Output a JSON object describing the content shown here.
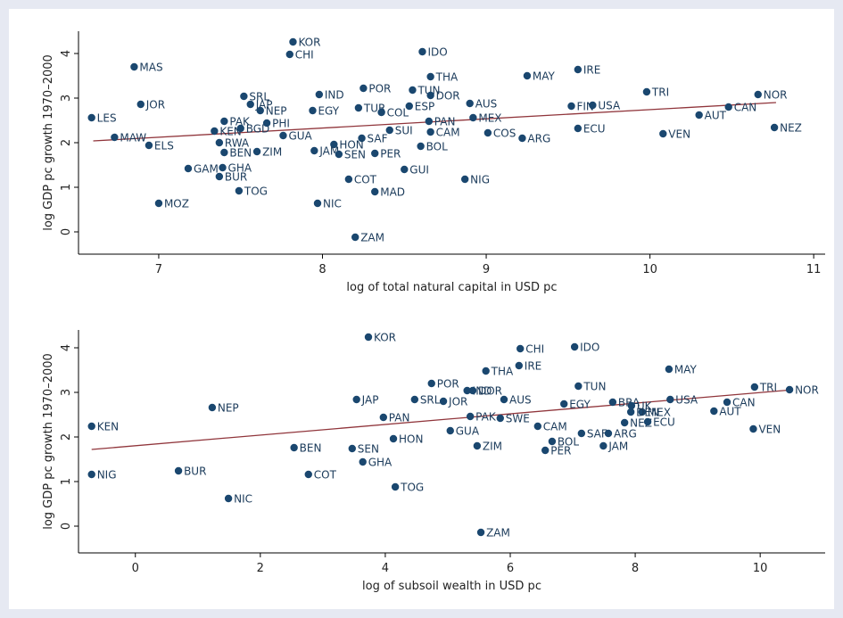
{
  "chart_data": [
    {
      "type": "scatter",
      "x_label": "log of total natural capital in USD pc",
      "y_label": "log GDP pc growth 1970–2000",
      "color": "#1a476f",
      "fit_color": "#90353b",
      "xlim": [
        6.51,
        11.07
      ],
      "ylim": [
        -0.5,
        4.5
      ],
      "xticks": [
        7,
        8,
        9,
        10,
        11
      ],
      "yticks": [
        0,
        1,
        2,
        3,
        4
      ],
      "labels": [
        "KOR",
        "CHI",
        "IDO",
        "MAS",
        "THA",
        "MAY",
        "IRE",
        "LES",
        "JOR",
        "MAW",
        "ELS",
        "SRL",
        "IND",
        "POR",
        "TUN",
        "DOR",
        "TRI",
        "NOR",
        "JAP",
        "NEP",
        "PAK",
        "KEN",
        "BGD",
        "PHI",
        "GUA",
        "EGY",
        "TUR",
        "COL",
        "ESP",
        "PAN",
        "MEX",
        "AUS",
        "FIN",
        "USA",
        "ECU",
        "CAN",
        "AUT",
        "NEZ",
        "VEN",
        "COS",
        "ARG",
        "CAM",
        "BOL",
        "SUI",
        "SAF",
        "HON",
        "JAM",
        "SEN",
        "PER",
        "RWA",
        "BEN",
        "ZIM",
        "GAM",
        "GHA",
        "BUR",
        "TOG",
        "MOZ",
        "NIC",
        "COT",
        "MAD",
        "GUI",
        "NIG",
        "ZAM"
      ],
      "x": [
        7.82,
        7.8,
        8.61,
        6.85,
        8.66,
        9.25,
        9.56,
        6.59,
        6.89,
        6.73,
        6.94,
        7.52,
        7.98,
        8.25,
        8.55,
        8.66,
        9.98,
        10.66,
        7.56,
        7.62,
        7.4,
        7.34,
        7.5,
        7.66,
        7.76,
        7.94,
        8.22,
        8.36,
        8.53,
        8.65,
        8.92,
        8.9,
        9.52,
        9.65,
        9.56,
        10.48,
        10.3,
        10.76,
        10.08,
        9.01,
        9.22,
        8.66,
        8.6,
        8.41,
        8.24,
        8.07,
        7.95,
        8.1,
        8.32,
        7.37,
        7.4,
        7.6,
        7.18,
        7.39,
        7.37,
        7.49,
        7.0,
        7.97,
        8.16,
        8.32,
        8.5,
        8.87,
        8.2
      ],
      "y": [
        4.26,
        3.98,
        4.04,
        3.7,
        3.48,
        3.5,
        3.64,
        2.56,
        2.86,
        2.12,
        1.94,
        3.04,
        3.08,
        3.22,
        3.18,
        3.06,
        3.14,
        3.08,
        2.86,
        2.72,
        2.48,
        2.26,
        2.32,
        2.44,
        2.16,
        2.72,
        2.78,
        2.68,
        2.82,
        2.48,
        2.56,
        2.88,
        2.82,
        2.84,
        2.32,
        2.8,
        2.62,
        2.34,
        2.2,
        2.22,
        2.1,
        2.24,
        1.92,
        2.28,
        2.1,
        1.96,
        1.82,
        1.74,
        1.76,
        2.0,
        1.78,
        1.8,
        1.42,
        1.44,
        1.24,
        0.92,
        0.64,
        0.64,
        1.18,
        0.9,
        1.4,
        1.18,
        -0.12
      ],
      "fit": {
        "x": [
          6.6,
          10.77
        ],
        "y": [
          2.04,
          2.9
        ]
      }
    },
    {
      "type": "scatter",
      "x_label": "log of subsoil wealth in USD pc",
      "y_label": "log GDP pc growth 1970–2000",
      "color": "#1a476f",
      "fit_color": "#90353b",
      "xlim": [
        -0.91,
        11.04
      ],
      "ylim": [
        -0.6,
        4.4
      ],
      "xticks": [
        0,
        2,
        4,
        6,
        8,
        10
      ],
      "yticks": [
        0,
        1,
        2,
        3,
        4
      ],
      "labels": [
        "KOR",
        "CHI",
        "IDO",
        "THA",
        "IRE",
        "MAY",
        "TRI",
        "NOR",
        "POR",
        "TUN",
        "JAP",
        "NEP",
        "KEN",
        "NIG",
        "BUR",
        "NIC",
        "BEN",
        "SEN",
        "COT",
        "GHA",
        "TOG",
        "HON",
        "GUA",
        "ZIM",
        "ZAM",
        "PAK",
        "SWE",
        "CAM",
        "BOL",
        "PER",
        "SAF",
        "JAM",
        "ARG",
        "NEZ",
        "ECU",
        "MEX",
        "USA",
        "CAN",
        "AUT",
        "VEN",
        "AUS",
        "BRA",
        "EGY",
        "IND",
        "DOR",
        "JOR",
        "SRL",
        "PAN",
        "UK",
        "DEN"
      ],
      "x": [
        3.73,
        6.16,
        7.03,
        5.61,
        6.14,
        8.54,
        9.91,
        10.47,
        4.74,
        7.09,
        3.54,
        1.23,
        -0.7,
        -0.7,
        0.69,
        1.49,
        2.54,
        3.47,
        2.77,
        3.64,
        4.16,
        4.13,
        5.04,
        5.47,
        5.53,
        5.36,
        5.84,
        6.44,
        6.67,
        6.56,
        7.14,
        7.49,
        7.57,
        7.83,
        8.2,
        8.11,
        8.56,
        9.47,
        9.26,
        9.89,
        5.9,
        7.64,
        6.86,
        5.31,
        5.4,
        4.93,
        4.47,
        3.97,
        7.94,
        7.93
      ],
      "y": [
        4.24,
        3.98,
        4.02,
        3.48,
        3.6,
        3.52,
        3.12,
        3.06,
        3.2,
        3.14,
        2.84,
        2.66,
        2.24,
        1.16,
        1.24,
        0.62,
        1.76,
        1.74,
        1.16,
        1.44,
        0.88,
        1.96,
        2.14,
        1.8,
        -0.14,
        2.46,
        2.42,
        2.24,
        1.9,
        1.7,
        2.08,
        1.8,
        2.08,
        2.32,
        2.34,
        2.56,
        2.84,
        2.78,
        2.58,
        2.18,
        2.84,
        2.78,
        2.74,
        3.04,
        3.04,
        2.8,
        2.84,
        2.44,
        2.7,
        2.56
      ],
      "fit": {
        "x": [
          -0.7,
          10.45
        ],
        "y": [
          1.72,
          3.05
        ]
      }
    }
  ]
}
